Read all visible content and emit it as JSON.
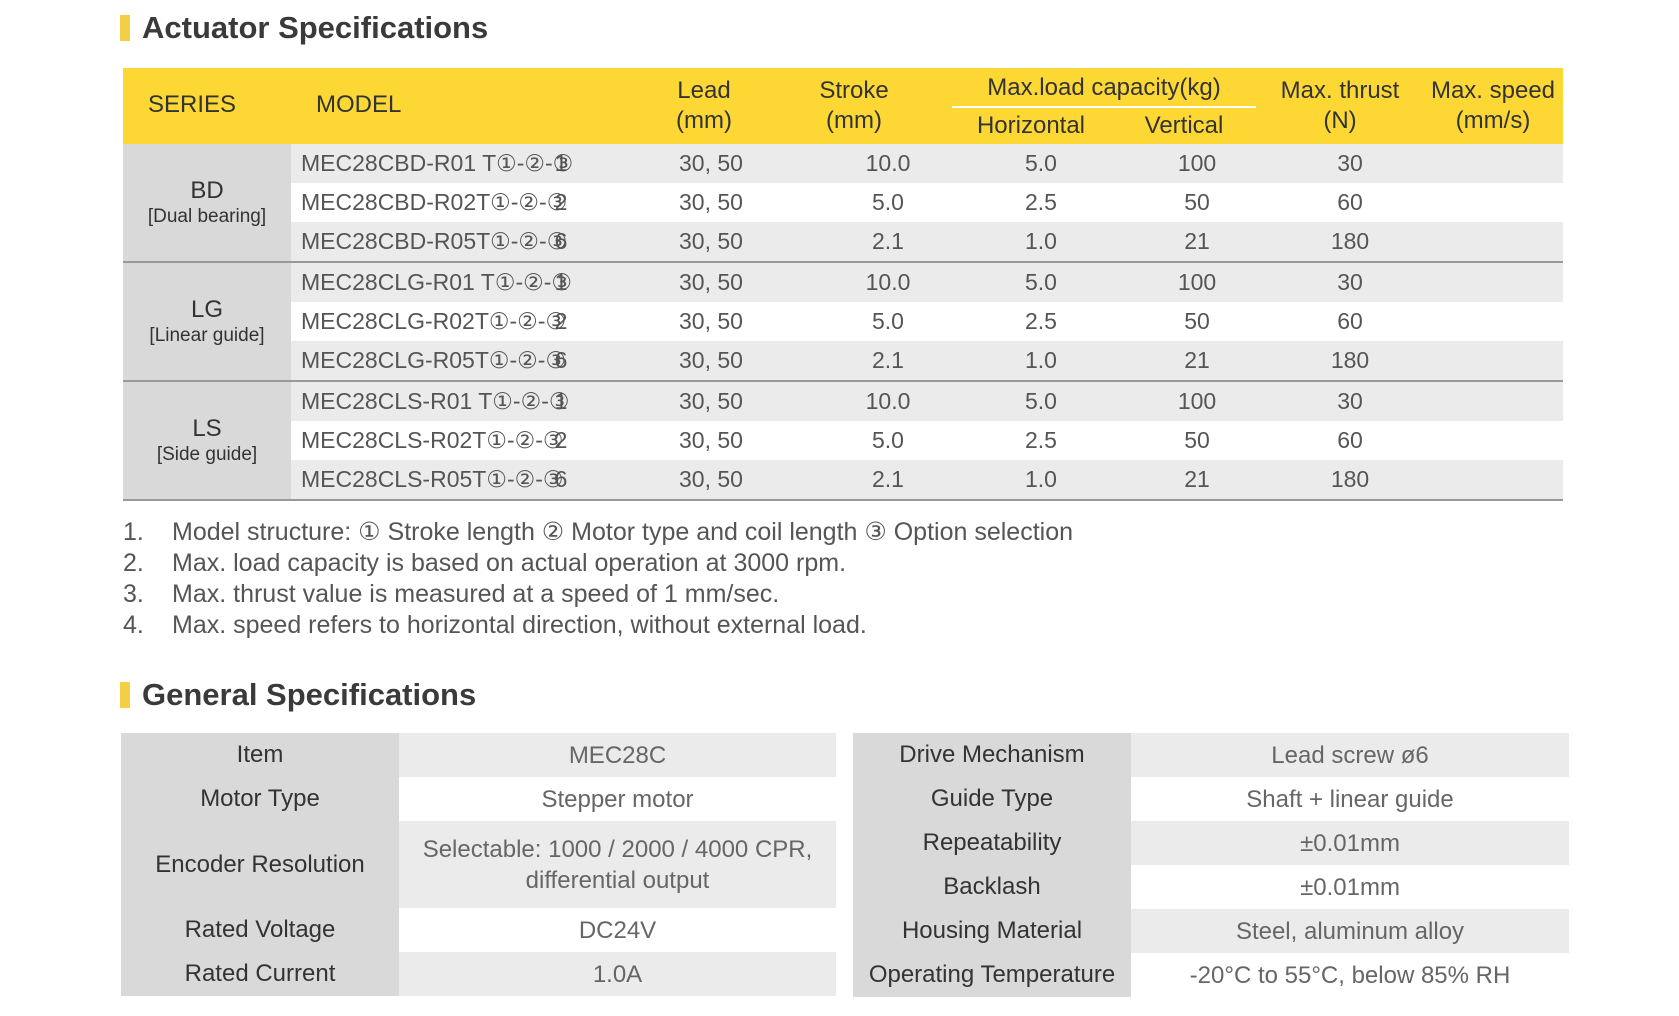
{
  "actuator": {
    "title": "Actuator Specifications",
    "headers": {
      "series": "SERIES",
      "model": "MODEL",
      "lead": [
        "Lead",
        "(mm)"
      ],
      "stroke": [
        "Stroke",
        "(mm)"
      ],
      "maxload": "Max.load capacity(kg)",
      "horizontal": "Horizontal",
      "vertical": "Vertical",
      "thrust": [
        "Max. thrust",
        "(N)"
      ],
      "speed": [
        "Max. speed",
        "(mm/s)"
      ]
    },
    "groups": [
      {
        "code": "BD",
        "desc": "[Dual bearing]",
        "rows": [
          {
            "model": "MEC28CBD-R01 T①-②-③",
            "lead": "1",
            "stroke": "30, 50",
            "h": "10.0",
            "v": "5.0",
            "thrust": "100",
            "speed": "30"
          },
          {
            "model": "MEC28CBD-R02T①-②-③",
            "lead": "2",
            "stroke": "30, 50",
            "h": "5.0",
            "v": "2.5",
            "thrust": "50",
            "speed": "60"
          },
          {
            "model": "MEC28CBD-R05T①-②-③",
            "lead": "6",
            "stroke": "30, 50",
            "h": "2.1",
            "v": "1.0",
            "thrust": "21",
            "speed": "180"
          }
        ]
      },
      {
        "code": "LG",
        "desc": "[Linear guide]",
        "rows": [
          {
            "model": "MEC28CLG-R01 T①-②-③",
            "lead": "1",
            "stroke": "30, 50",
            "h": "10.0",
            "v": "5.0",
            "thrust": "100",
            "speed": "30"
          },
          {
            "model": "MEC28CLG-R02T①-②-③",
            "lead": "2",
            "stroke": "30, 50",
            "h": "5.0",
            "v": "2.5",
            "thrust": "50",
            "speed": "60"
          },
          {
            "model": "MEC28CLG-R05T①-②-③",
            "lead": "6",
            "stroke": "30, 50",
            "h": "2.1",
            "v": "1.0",
            "thrust": "21",
            "speed": "180"
          }
        ]
      },
      {
        "code": "LS",
        "desc": "[Side guide]",
        "rows": [
          {
            "model": "MEC28CLS-R01 T①-②-③",
            "lead": "1",
            "stroke": "30, 50",
            "h": "10.0",
            "v": "5.0",
            "thrust": "100",
            "speed": "30"
          },
          {
            "model": "MEC28CLS-R02T①-②-③",
            "lead": "2",
            "stroke": "30, 50",
            "h": "5.0",
            "v": "2.5",
            "thrust": "50",
            "speed": "60"
          },
          {
            "model": "MEC28CLS-R05T①-②-③",
            "lead": "6",
            "stroke": "30, 50",
            "h": "2.1",
            "v": "1.0",
            "thrust": "21",
            "speed": "180"
          }
        ]
      }
    ],
    "notes": [
      {
        "num": "1.",
        "text": "Model structure: ① Stroke length ② Motor type and coil length ③ Option selection"
      },
      {
        "num": "2.",
        "text": "Max. load capacity is based on actual operation at 3000 rpm."
      },
      {
        "num": "3.",
        "text": "Max. thrust value is measured at a speed of 1 mm/sec."
      },
      {
        "num": "4.",
        "text": "Max. speed refers to horizontal direction, without external load."
      }
    ]
  },
  "general": {
    "title": "General Specifications",
    "left": [
      {
        "key": "Item",
        "value": "MEC28C"
      },
      {
        "key": "Motor Type",
        "value": "Stepper motor"
      },
      {
        "key": "Encoder Resolution",
        "value": "Selectable: 1000 / 2000 / 4000 CPR,",
        "value2": "differential output"
      },
      {
        "key": "Rated Voltage",
        "value": "DC24V"
      },
      {
        "key": "Rated Current",
        "value": "1.0A"
      }
    ],
    "right": [
      {
        "key": "Drive Mechanism",
        "value": "Lead screw ø6"
      },
      {
        "key": "Guide Type",
        "value": "Shaft + linear guide"
      },
      {
        "key": "Repeatability",
        "value": "±0.01mm"
      },
      {
        "key": "Backlash",
        "value": "±0.01mm"
      },
      {
        "key": "Housing Material",
        "value": "Steel, aluminum alloy"
      },
      {
        "key": "Operating Temperature",
        "value": "-20°C to 55°C, below 85% RH"
      }
    ]
  }
}
